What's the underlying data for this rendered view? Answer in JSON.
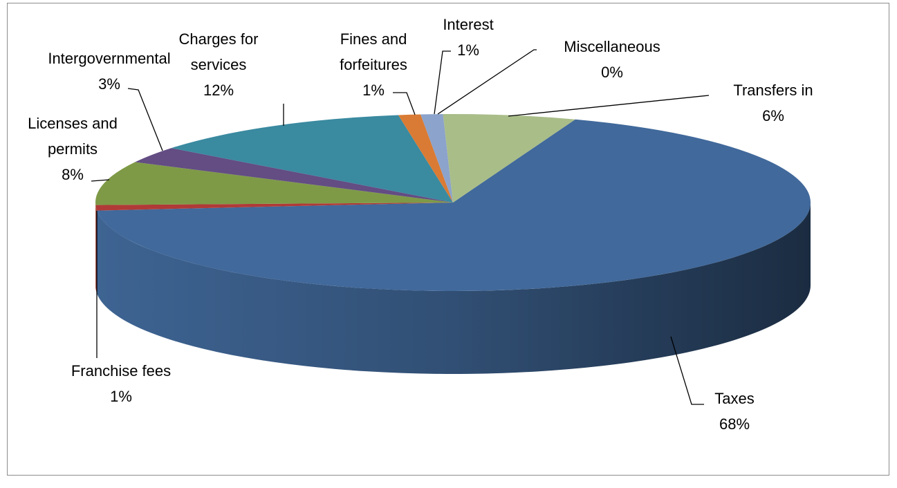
{
  "chart_data": {
    "type": "pie3d",
    "categories": [
      "Taxes",
      "Franchise fees",
      "Licenses and permits",
      "Intergovernmental",
      "Charges for services",
      "Fines and forfeitures",
      "Interest",
      "Miscellaneous",
      "Transfers in"
    ],
    "values": [
      68,
      1,
      8,
      3,
      12,
      1,
      1,
      0,
      6
    ],
    "value_labels": [
      "68%",
      "1%",
      "8%",
      "3%",
      "12%",
      "1%",
      "1%",
      "0%",
      "6%"
    ],
    "colors": [
      "#41699b",
      "#b03a37",
      "#7e9a47",
      "#634d83",
      "#3a8aa0",
      "#d97b34",
      "#8ca3cb",
      "#c4c4c4",
      "#a9bd89"
    ]
  }
}
